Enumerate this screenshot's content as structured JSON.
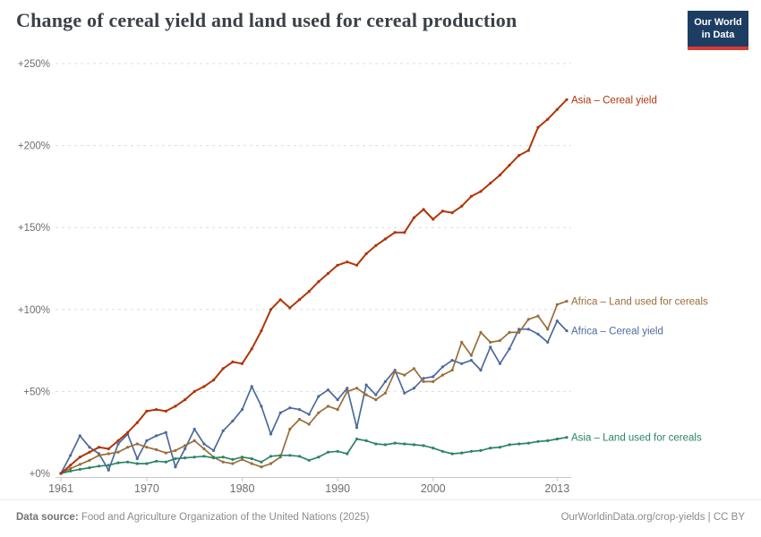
{
  "header": {
    "title": "Change of cereal yield and land used for cereal production",
    "logo": {
      "line1": "Our World",
      "line2": "in Data",
      "bg_color": "#1d3d63",
      "bar_color": "#d93a34"
    }
  },
  "chart_data": {
    "type": "line",
    "title": "Change of cereal yield and land used for cereal production",
    "xlabel": "",
    "ylabel": "",
    "ylim": [
      0,
      250
    ],
    "yticks": [
      0,
      50,
      100,
      150,
      200,
      250
    ],
    "ytick_labels": [
      "+0%",
      "+50%",
      "+100%",
      "+150%",
      "+200%",
      "+250%"
    ],
    "xticks": [
      1961,
      1970,
      1980,
      1990,
      2000,
      2013
    ],
    "grid": "horizontal-dashed",
    "grid_color": "#dcdcdc",
    "axis_color": "#c9c9c9",
    "axis_text_color": "#6e6e6e",
    "legend_position": "right-end-labels",
    "x": [
      1961,
      1962,
      1963,
      1964,
      1965,
      1966,
      1967,
      1968,
      1969,
      1970,
      1971,
      1972,
      1973,
      1974,
      1975,
      1976,
      1977,
      1978,
      1979,
      1980,
      1981,
      1982,
      1983,
      1984,
      1985,
      1986,
      1987,
      1988,
      1989,
      1990,
      1991,
      1992,
      1993,
      1994,
      1995,
      1996,
      1997,
      1998,
      1999,
      2000,
      2001,
      2002,
      2003,
      2004,
      2005,
      2006,
      2007,
      2008,
      2009,
      2010,
      2011,
      2012,
      2013,
      2014
    ],
    "series": [
      {
        "id": "africa-cereal-yield",
        "name": "Africa – Cereal yield",
        "color": "#4c6a9c",
        "values": [
          0,
          11,
          23,
          16,
          12,
          2,
          18,
          24,
          9,
          20,
          23,
          25,
          4,
          15,
          27,
          18,
          14,
          26,
          32,
          39,
          53,
          41,
          24,
          37,
          40,
          39,
          36,
          47,
          51,
          45,
          52,
          28,
          54,
          48,
          56,
          63,
          49,
          52,
          58,
          59,
          65,
          69,
          67,
          69,
          63,
          77,
          67,
          76,
          88,
          88,
          85,
          80,
          93,
          87
        ]
      },
      {
        "id": "africa-land-used-for-cereals",
        "name": "Africa – Land used for cereals",
        "color": "#996d39",
        "values": [
          0,
          3,
          5.5,
          8,
          11,
          12,
          13,
          16,
          18,
          16,
          14.5,
          12.5,
          14,
          17,
          20,
          15,
          10,
          7,
          6,
          8.5,
          6,
          4,
          6,
          10,
          27,
          33,
          30,
          37,
          41,
          39,
          50,
          52,
          48,
          45,
          49,
          62,
          60,
          64,
          56,
          56,
          60,
          63,
          80,
          72,
          86,
          80,
          81,
          86,
          86,
          94,
          96,
          88,
          103,
          105
        ]
      },
      {
        "id": "asia-land-used-for-cereals",
        "name": "Asia – Land used for cereals",
        "color": "#2c8465",
        "values": [
          0,
          1.5,
          2.5,
          3.5,
          4.5,
          5,
          6.5,
          7,
          6,
          6,
          7.5,
          7,
          9,
          9.5,
          10,
          10.5,
          9.5,
          10,
          8.5,
          10,
          9,
          7,
          10.5,
          11,
          11,
          10.5,
          8,
          10,
          13,
          13.5,
          12,
          21,
          20,
          18,
          17.5,
          18.5,
          18,
          17.5,
          17,
          15.5,
          13.5,
          12,
          12.5,
          13.5,
          14,
          15.5,
          16,
          17.5,
          18,
          18.5,
          19.5,
          20,
          21,
          22
        ]
      },
      {
        "id": "asia-cereal-yield",
        "name": "Asia – Cereal yield",
        "color": "#b13507",
        "values": [
          0,
          5,
          10,
          13,
          16,
          15,
          20,
          25,
          31,
          38,
          39,
          38,
          41,
          45,
          50,
          53,
          57,
          64,
          68,
          67,
          76,
          87,
          100,
          106,
          101,
          106,
          111,
          117,
          122,
          127,
          129,
          127,
          134,
          139,
          143,
          147,
          147,
          156,
          161,
          155,
          160,
          159,
          163,
          169,
          172,
          177,
          182,
          188,
          194,
          197,
          211,
          216,
          222,
          228
        ]
      }
    ]
  },
  "footer": {
    "source_label": "Data source:",
    "source_text": " Food and Agriculture Organization of the United Nations (2025)",
    "link": "OurWorldinData.org/crop-yields",
    "separator": " | ",
    "license": "CC BY"
  }
}
